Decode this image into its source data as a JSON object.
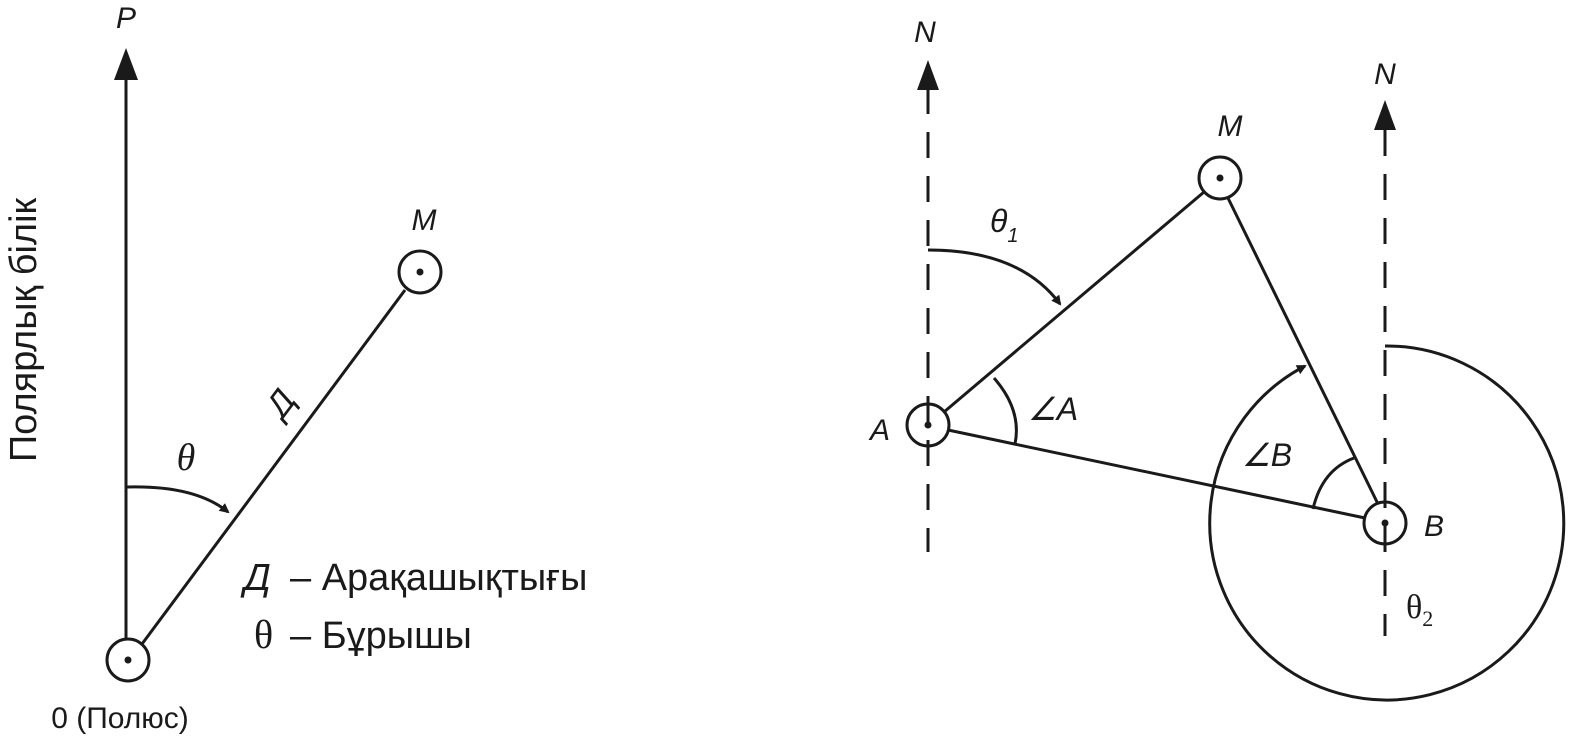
{
  "left": {
    "axis_label": "Полярлық білік",
    "axis_end_label": "P",
    "pole_label": "0 (Полюс)",
    "point_label": "M",
    "distance_symbol": "Д",
    "angle_symbol": "θ",
    "legend": [
      {
        "symbol": "Д",
        "text": "– Арақашықтығы"
      },
      {
        "symbol": "θ",
        "text": "– Бұрышы"
      }
    ]
  },
  "right": {
    "north_label_a": "N",
    "north_label_b": "N",
    "point_a": "A",
    "point_b": "B",
    "point_m": "M",
    "theta1": "θ",
    "theta1_sub": "1",
    "theta2": "θ",
    "theta2_sub": "2",
    "angle_a": "∠A",
    "angle_b": "∠B"
  },
  "colors": {
    "ink": "#1a1a1a",
    "background": "#ffffff"
  }
}
